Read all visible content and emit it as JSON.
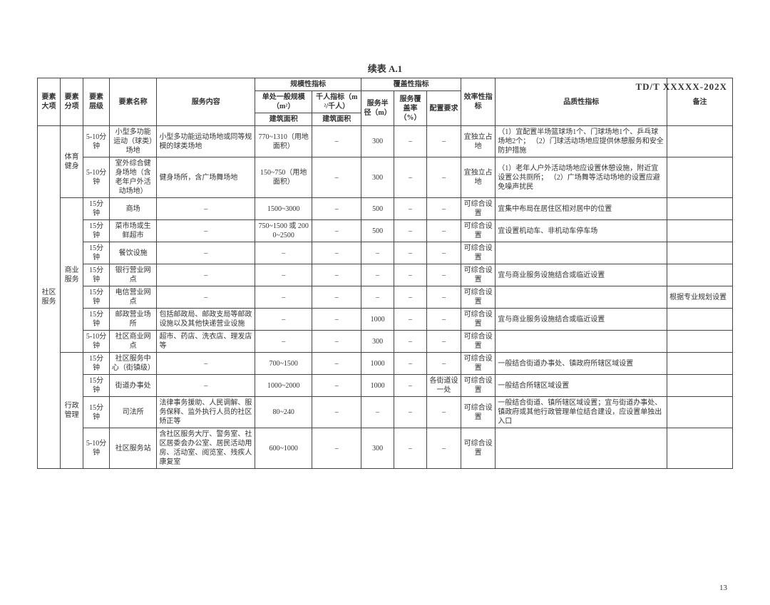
{
  "doc_code": "TD/T  XXXXX-202X",
  "table_title": "续表 A.1",
  "page_number": "13",
  "headers": {
    "col1": "要素大项",
    "col2": "要素分项",
    "col3": "要素层级",
    "col4": "要素名称",
    "col5": "服务内容",
    "group_scale": "规模性指标",
    "col6": "单处一般规模（m²）",
    "col7": "千人指标（m²/千人）",
    "col6b": "建筑面积",
    "col7b": "建筑面积",
    "group_cover": "覆盖性指标",
    "col8": "服务半径（m）",
    "col9": "服务覆盖率（%）",
    "col10": "配置要求",
    "col11": "效率性指标",
    "col12": "品质性指标",
    "col13": "备注"
  },
  "big_label": "社区服务",
  "groups": [
    {
      "label": "体育健身",
      "rows": [
        {
          "lvl": "5-10分钟",
          "name": "小型多功能运动（球类）场地",
          "content": "小型多功能运动场地或同等规模的球类场地",
          "scale": "770~1310（用地面积）",
          "per": "–",
          "radius": "300",
          "cover": "–",
          "cfg": "–",
          "eff": "宜独立占地",
          "quality": "（1）宜配置半场篮球场1个、门球场地1个、乒乓球场地2个；\n（2）门球活动场地应提供休憩服务和安全防护措施",
          "note": ""
        },
        {
          "lvl": "5-10分钟",
          "name": "室外综合健身场地（含老年户外活动场地）",
          "content": "健身场所，含广场舞场地",
          "scale": "150~750（用地面积）",
          "per": "–",
          "radius": "300",
          "cover": "–",
          "cfg": "–",
          "eff": "宜独立占地",
          "quality": "（1）老年人户外活动场地应设置休憩设施，附近宜设置公共厕所；\n（2）广场舞等活动场地的设置应避免噪声扰民",
          "note": ""
        }
      ]
    },
    {
      "label": "商业服务",
      "rows": [
        {
          "lvl": "15分钟",
          "name": "商场",
          "content": "–",
          "scale": "1500~3000",
          "per": "–",
          "radius": "500",
          "cover": "–",
          "cfg": "–",
          "eff": "可综合设置",
          "quality": "宜集中布局在居住区相对居中的位置",
          "note": ""
        },
        {
          "lvl": "15分钟",
          "name": "菜市场或生鲜超市",
          "content": "–",
          "scale": "750~1500 或 2000~2500",
          "per": "–",
          "radius": "500",
          "cover": "–",
          "cfg": "–",
          "eff": "可综合设置",
          "quality": "宜设置机动车、非机动车停车场",
          "note": ""
        },
        {
          "lvl": "15分钟",
          "name": "餐饮设施",
          "content": "–",
          "scale": "–",
          "per": "–",
          "radius": "–",
          "cover": "–",
          "cfg": "–",
          "eff": "可综合设置",
          "quality": "",
          "note": ""
        },
        {
          "lvl": "15分钟",
          "name": "银行营业网点",
          "content": "–",
          "scale": "–",
          "per": "–",
          "radius": "–",
          "cover": "–",
          "cfg": "–",
          "eff": "可综合设置",
          "quality": "宜与商业服务设施结合或临近设置",
          "note": ""
        },
        {
          "lvl": "15分钟",
          "name": "电信营业网点",
          "content": "–",
          "scale": "–",
          "per": "–",
          "radius": "–",
          "cover": "–",
          "cfg": "–",
          "eff": "可综合设置",
          "quality": "",
          "note": "根据专业规划设置"
        },
        {
          "lvl": "15分钟",
          "name": "邮政营业场所",
          "content": "包括邮政局、邮政支局等邮政设施以及其他快递营业设施",
          "scale": "–",
          "per": "–",
          "radius": "1000",
          "cover": "–",
          "cfg": "–",
          "eff": "可综合设置",
          "quality": "宜与商业服务设施结合或临近设置",
          "note": ""
        },
        {
          "lvl": "5-10分钟",
          "name": "社区商业网点",
          "content": "超市、药店、洗衣店、理发店等",
          "scale": "–",
          "per": "–",
          "radius": "300",
          "cover": "–",
          "cfg": "–",
          "eff": "可综合设置",
          "quality": "",
          "note": ""
        }
      ]
    },
    {
      "label": "行政管理",
      "rows": [
        {
          "lvl": "15分钟",
          "name": "社区服务中心（街镇级）",
          "content": "–",
          "scale": "700~1500",
          "per": "–",
          "radius": "1000",
          "cover": "–",
          "cfg": "–",
          "eff": "可综合设置",
          "quality": "一般结合街道办事处、镇政府所辖区域设置",
          "note": ""
        },
        {
          "lvl": "15分钟",
          "name": "街道办事处",
          "content": "–",
          "scale": "1000~2000",
          "per": "–",
          "radius": "1000",
          "cover": "–",
          "cfg": "各街道设一处",
          "eff": "可综合设置",
          "quality": "一般结合所辖区域设置",
          "note": ""
        },
        {
          "lvl": "15分钟",
          "name": "司法所",
          "content": "法律事务援助、人民调解、服务保释、监外执行人员的社区矫正等",
          "scale": "80~240",
          "per": "–",
          "radius": "–",
          "cover": "–",
          "cfg": "–",
          "eff": "可综合设置",
          "quality": "一般结合街道、镇所辖区域设置；宜与街道办事处、镇政府或其他行政管理单位结合建设，应设置单独出入口",
          "note": ""
        },
        {
          "lvl": "5-10分钟",
          "name": "社区服务站",
          "content": "含社区服务大厅、警务室、社区居委会办公室、居民活动用房、活动室、阅览室、残疾人康复室",
          "scale": "600~1000",
          "per": "–",
          "radius": "300",
          "cover": "–",
          "cfg": "–",
          "eff": "可综合设置",
          "quality": "",
          "note": ""
        }
      ]
    }
  ]
}
